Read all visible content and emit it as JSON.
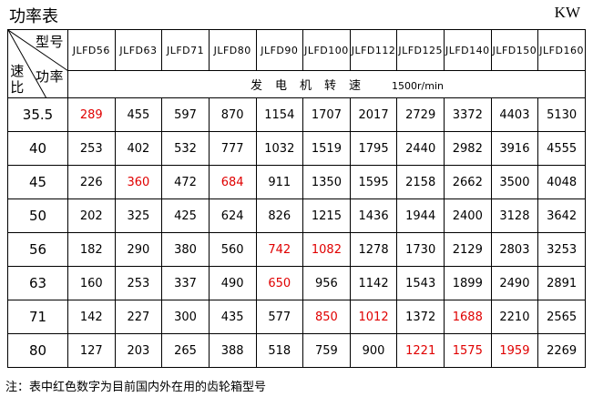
{
  "title": "功率表",
  "unit": "KW",
  "header": {
    "model_label": "型号",
    "power_label": "功率",
    "ratio_label": "速比",
    "speed_label": "发电机转速",
    "speed_value": "1500r/min"
  },
  "models": [
    "JLFD56",
    "JLFD63",
    "JLFD71",
    "JLFD80",
    "JLFD90",
    "JLFD100",
    "JLFD112",
    "JLFD125",
    "JLFD140",
    "JLFD150",
    "JLFD160"
  ],
  "rows": [
    {
      "ratio": "35.5",
      "values": [
        "289",
        "455",
        "597",
        "870",
        "1154",
        "1707",
        "2017",
        "2729",
        "3372",
        "4403",
        "5130"
      ],
      "red": [
        0
      ]
    },
    {
      "ratio": "40",
      "values": [
        "253",
        "402",
        "532",
        "777",
        "1032",
        "1519",
        "1795",
        "2440",
        "2982",
        "3916",
        "4555"
      ],
      "red": []
    },
    {
      "ratio": "45",
      "values": [
        "226",
        "360",
        "472",
        "684",
        "911",
        "1350",
        "1595",
        "2158",
        "2662",
        "3500",
        "4048"
      ],
      "red": [
        1,
        3
      ]
    },
    {
      "ratio": "50",
      "values": [
        "202",
        "325",
        "425",
        "624",
        "826",
        "1215",
        "1436",
        "1944",
        "2400",
        "3128",
        "3642"
      ],
      "red": []
    },
    {
      "ratio": "56",
      "values": [
        "182",
        "290",
        "380",
        "560",
        "742",
        "1082",
        "1278",
        "1730",
        "2129",
        "2803",
        "3253"
      ],
      "red": [
        4,
        5
      ]
    },
    {
      "ratio": "63",
      "values": [
        "160",
        "253",
        "337",
        "490",
        "650",
        "956",
        "1142",
        "1543",
        "1899",
        "2490",
        "2891"
      ],
      "red": [
        4
      ]
    },
    {
      "ratio": "71",
      "values": [
        "142",
        "227",
        "300",
        "435",
        "577",
        "850",
        "1012",
        "1372",
        "1688",
        "2210",
        "2565"
      ],
      "red": [
        5,
        6,
        8
      ]
    },
    {
      "ratio": "80",
      "values": [
        "127",
        "203",
        "265",
        "388",
        "518",
        "759",
        "900",
        "1221",
        "1575",
        "1959",
        "2269"
      ],
      "red": [
        7,
        8,
        9
      ]
    }
  ],
  "note": "注：表中红色数字为目前国内外在用的齿轮箱型号",
  "colors": {
    "highlight": "#e00000",
    "text": "#000000"
  }
}
